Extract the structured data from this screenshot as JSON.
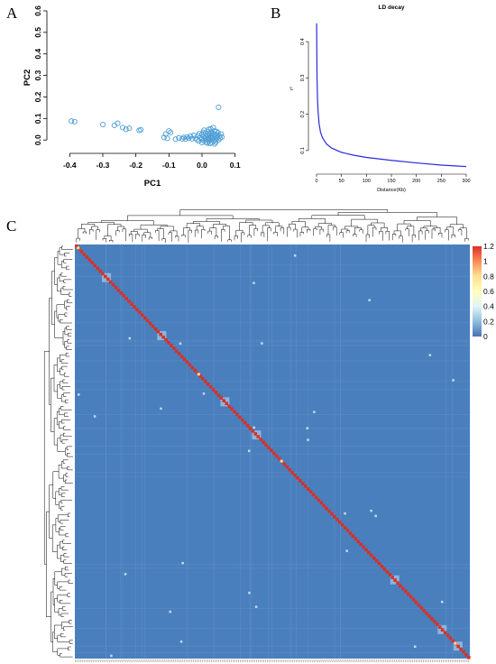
{
  "panels": {
    "a": "A",
    "b": "B",
    "c": "C"
  },
  "chart_data": [
    {
      "type": "scatter",
      "panel": "A",
      "xlabel": "PC1",
      "ylabel": "PC2",
      "xlim": [
        -0.42,
        0.12
      ],
      "ylim": [
        -0.02,
        0.6
      ],
      "xticks": [
        -0.4,
        -0.3,
        -0.2,
        -0.1,
        0.0,
        0.1
      ],
      "xtick_labels": [
        "-0.4",
        "-0.3",
        "-0.2",
        "-0.1",
        "0.0",
        "0.1"
      ],
      "yticks": [
        0.0,
        0.1,
        0.2,
        0.3,
        0.4,
        0.5,
        0.6
      ],
      "ytick_labels": [
        "0.0",
        "0.1",
        "0.2",
        "0.3",
        "0.4",
        "0.5",
        "0.6"
      ],
      "marker_color": "#4f9fd6",
      "points": [
        [
          -0.395,
          0.088
        ],
        [
          -0.385,
          0.085
        ],
        [
          -0.3,
          0.072
        ],
        [
          -0.265,
          0.068
        ],
        [
          -0.255,
          0.078
        ],
        [
          -0.24,
          0.058
        ],
        [
          -0.23,
          0.05
        ],
        [
          -0.22,
          0.055
        ],
        [
          -0.19,
          0.045
        ],
        [
          -0.185,
          0.048
        ],
        [
          -0.115,
          0.012
        ],
        [
          -0.11,
          0.028
        ],
        [
          -0.105,
          0.008
        ],
        [
          -0.1,
          0.042
        ],
        [
          -0.095,
          0.035
        ],
        [
          -0.08,
          0.004
        ],
        [
          -0.07,
          0.01
        ],
        [
          -0.06,
          0.006
        ],
        [
          -0.055,
          0.012
        ],
        [
          -0.05,
          0.004
        ],
        [
          -0.045,
          0.014
        ],
        [
          -0.04,
          0.008
        ],
        [
          -0.035,
          0.018
        ],
        [
          -0.03,
          0.006
        ],
        [
          -0.025,
          0.022
        ],
        [
          -0.02,
          0.008
        ],
        [
          -0.015,
          0.002
        ],
        [
          -0.01,
          -0.004
        ],
        [
          -0.005,
          0.012
        ],
        [
          0.0,
          0.004
        ],
        [
          0.0,
          0.026
        ],
        [
          0.005,
          -0.002
        ],
        [
          0.005,
          0.016
        ],
        [
          0.01,
          0.008
        ],
        [
          0.01,
          0.032
        ],
        [
          0.012,
          -0.01
        ],
        [
          0.015,
          0.002
        ],
        [
          0.015,
          0.022
        ],
        [
          0.018,
          0.04
        ],
        [
          0.02,
          0.01
        ],
        [
          0.02,
          -0.006
        ],
        [
          0.022,
          0.028
        ],
        [
          0.025,
          0.014
        ],
        [
          0.025,
          0.002
        ],
        [
          0.028,
          0.036
        ],
        [
          0.03,
          -0.012
        ],
        [
          0.03,
          0.006
        ],
        [
          0.03,
          0.02
        ],
        [
          0.032,
          0.03
        ],
        [
          0.034,
          0.012
        ],
        [
          0.035,
          -0.004
        ],
        [
          0.036,
          0.026
        ],
        [
          0.038,
          0.042
        ],
        [
          0.04,
          0.004
        ],
        [
          0.04,
          0.016
        ],
        [
          0.042,
          -0.01
        ],
        [
          0.044,
          0.022
        ],
        [
          0.046,
          0.01
        ],
        [
          0.048,
          0.034
        ],
        [
          0.05,
          0.0
        ],
        [
          0.05,
          0.152
        ],
        [
          0.052,
          0.018
        ],
        [
          0.055,
          0.008
        ],
        [
          0.058,
          0.028
        ],
        [
          0.06,
          0.014
        ],
        [
          0.02,
          0.05
        ],
        [
          0.006,
          0.046
        ],
        [
          -0.008,
          0.03
        ],
        [
          0.026,
          0.052
        ],
        [
          0.034,
          0.058
        ],
        [
          0.016,
          -0.014
        ],
        [
          0.0,
          -0.012
        ],
        [
          0.024,
          -0.016
        ],
        [
          0.038,
          -0.018
        ],
        [
          0.012,
          0.018
        ],
        [
          0.004,
          0.036
        ],
        [
          -0.012,
          0.02
        ],
        [
          0.044,
          0.04
        ],
        [
          0.028,
          0.012
        ],
        [
          0.018,
          0.006
        ]
      ]
    },
    {
      "type": "line",
      "panel": "B",
      "title": "LD decay",
      "xlabel": "Distance(Kb)",
      "ylabel": "r²",
      "xlim": [
        0,
        300
      ],
      "ylim": [
        0.05,
        0.46
      ],
      "xticks": [
        0,
        50,
        100,
        150,
        200,
        250,
        300
      ],
      "xtick_labels": [
        "0",
        "50",
        "100",
        "150",
        "200",
        "250",
        "300"
      ],
      "yticks": [
        0.1,
        0.2,
        0.3,
        0.4
      ],
      "ytick_labels": [
        "0.1",
        "0.2",
        "0.3",
        "0.4"
      ],
      "line_color": "#2a2ae0",
      "x": [
        0.2,
        0.5,
        1,
        2,
        3,
        5,
        8,
        12,
        20,
        30,
        50,
        75,
        100,
        150,
        200,
        250,
        300
      ],
      "y": [
        0.45,
        0.38,
        0.3,
        0.24,
        0.21,
        0.175,
        0.15,
        0.135,
        0.118,
        0.107,
        0.095,
        0.087,
        0.081,
        0.073,
        0.066,
        0.06,
        0.056
      ]
    },
    {
      "type": "heatmap",
      "panel": "C",
      "legend_ticks": [
        0,
        0.2,
        0.4,
        0.6,
        0.8,
        1,
        1.2
      ],
      "legend_tick_labels": [
        "0",
        "0.2",
        "0.4",
        "0.6",
        "0.8",
        "1",
        "1.2"
      ],
      "value_range": [
        0,
        1.2
      ],
      "background_value": 0.15,
      "colors": {
        "low": "#4575b4",
        "base": "#4a7fbd",
        "mid": "#e0f3f8",
        "high_mid": "#fee090",
        "high": "#d73027"
      },
      "diagonal_value": 1.2,
      "highlight_blocks": [
        0.08,
        0.22,
        0.38,
        0.46,
        0.81,
        0.93,
        0.97
      ]
    }
  ]
}
